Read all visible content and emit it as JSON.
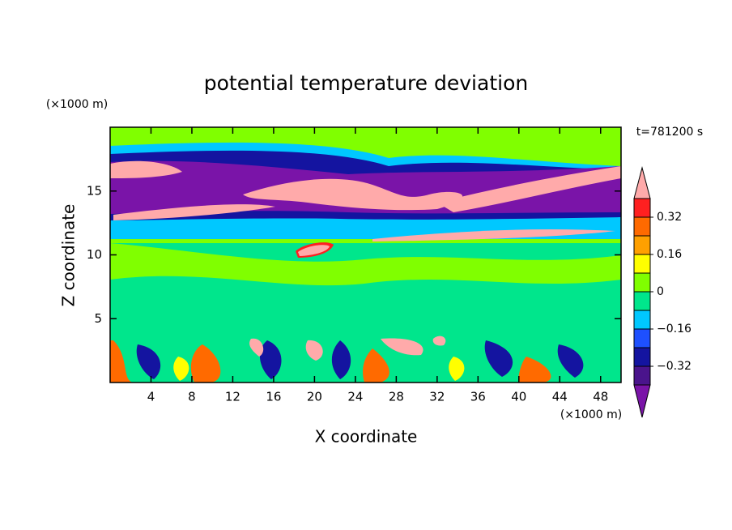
{
  "chart_data": {
    "type": "contour",
    "title": "potential temperature deviation",
    "x_label": "X coordinate",
    "y_label": "Z coordinate",
    "x_unit": "(×1000 m)",
    "y_unit": "(×1000 m)",
    "time_label": "t=781200 s",
    "xlim": [
      0,
      50
    ],
    "ylim": [
      0,
      20
    ],
    "xticks": [
      4,
      8,
      12,
      16,
      20,
      24,
      28,
      32,
      36,
      40,
      44,
      48
    ],
    "yticks": [
      5,
      10,
      15
    ],
    "colorbar": {
      "levels": [
        -0.4,
        -0.32,
        -0.24,
        -0.16,
        -0.08,
        0,
        0.08,
        0.16,
        0.24,
        0.32,
        0.4
      ],
      "colors": [
        "#4a148c",
        "#1414a0",
        "#1e50ff",
        "#00c8ff",
        "#00e68c",
        "#80ff00",
        "#ffff00",
        "#ffa000",
        "#ff6a00",
        "#ff2020"
      ],
      "under_color": "#7a14a8",
      "over_color": "#ffaaaa",
      "ticks": [
        {
          "value": -0.32,
          "label": "−0.32"
        },
        {
          "value": -0.16,
          "label": "−0.16"
        },
        0,
        0.16,
        0.32
      ]
    }
  }
}
